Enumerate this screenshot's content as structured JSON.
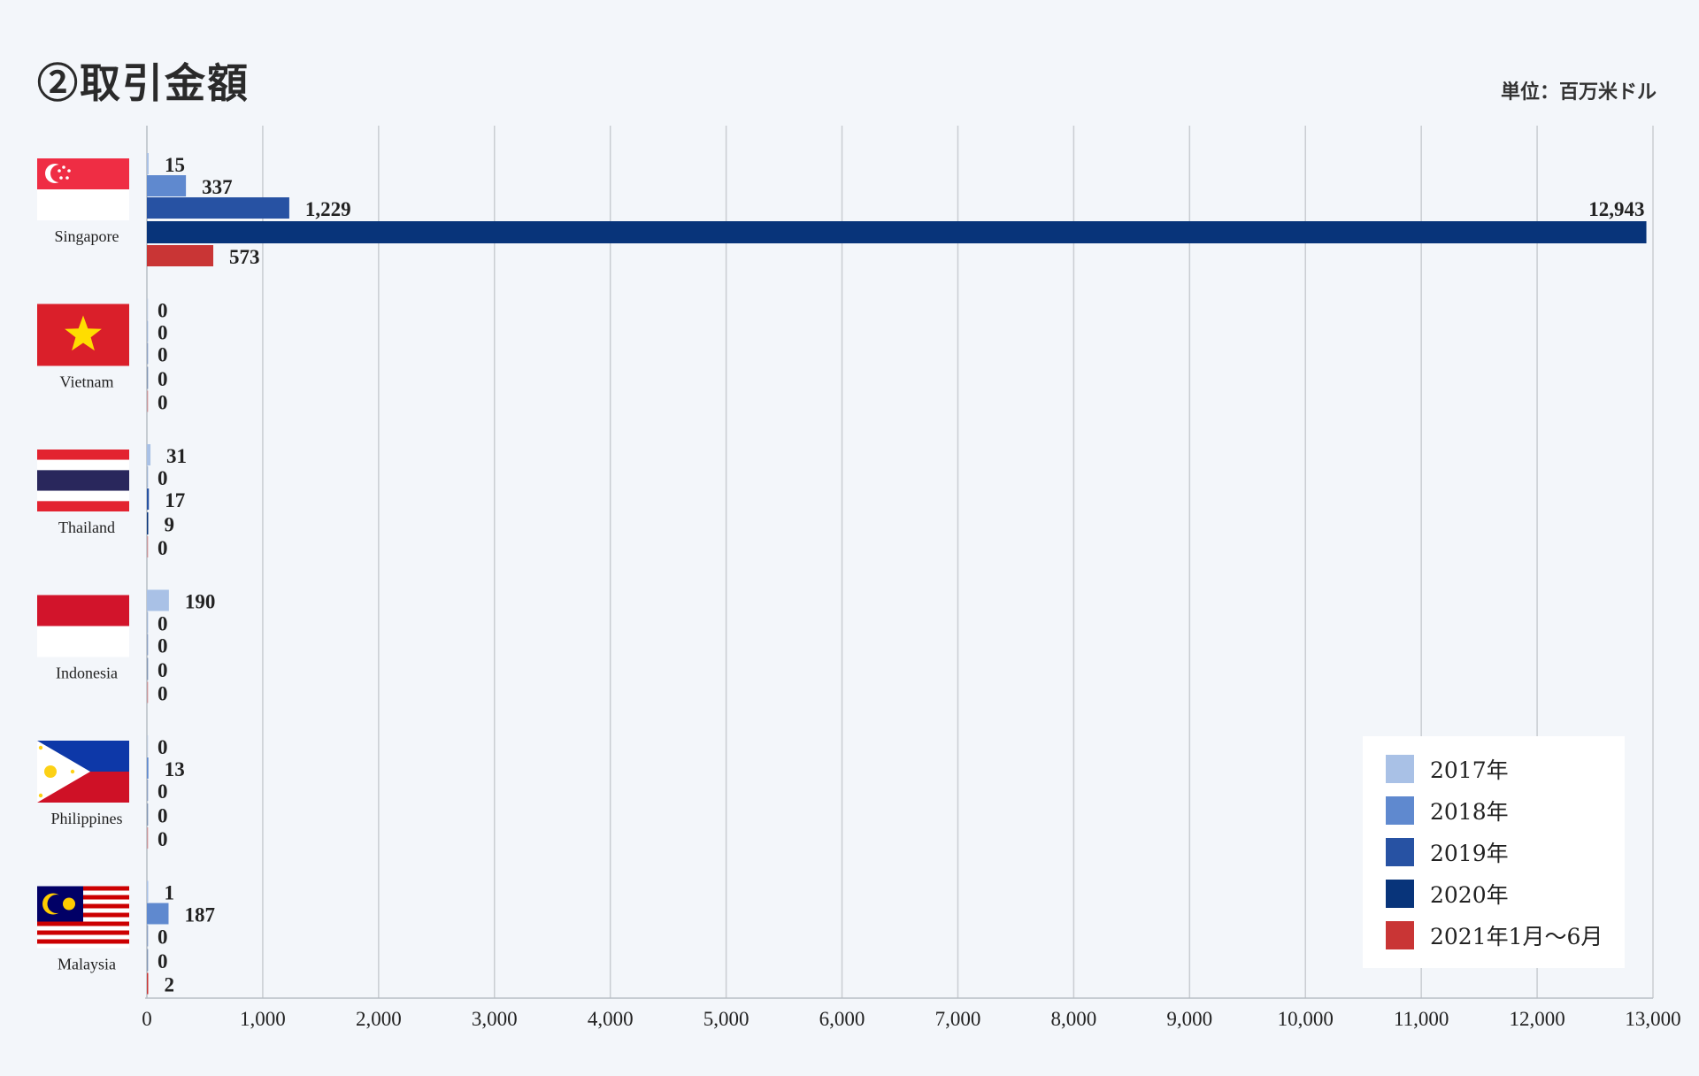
{
  "header": {
    "title": "②取引金額",
    "unit": "単位：百万米ドル"
  },
  "colors": {
    "s2017": "#a9c1e6",
    "s2018": "#5f89cf",
    "s2019": "#2752a3",
    "s2020": "#08347a",
    "s2021": "#c93535",
    "grid": "#c9cdd2",
    "background": "#f3f6fa"
  },
  "chart_data": {
    "type": "bar",
    "orientation": "horizontal",
    "categories": [
      "Singapore",
      "Vietnam",
      "Thailand",
      "Indonesia",
      "Philippines",
      "Malaysia"
    ],
    "series": [
      {
        "name": "2017年",
        "values": [
          15,
          0,
          31,
          190,
          0,
          1
        ]
      },
      {
        "name": "2018年",
        "values": [
          337,
          0,
          0,
          0,
          13,
          187
        ]
      },
      {
        "name": "2019年",
        "values": [
          1229,
          0,
          17,
          0,
          0,
          0
        ]
      },
      {
        "name": "2020年",
        "values": [
          12943,
          0,
          9,
          0,
          0,
          0
        ]
      },
      {
        "name": "2021年1月～6月",
        "values": [
          573,
          0,
          0,
          0,
          0,
          2
        ]
      }
    ],
    "data_labels": [
      [
        "15",
        "337",
        "1,229",
        "12,943",
        "573"
      ],
      [
        "0",
        "0",
        "0",
        "0",
        "0"
      ],
      [
        "31",
        "0",
        "17",
        "9",
        "0"
      ],
      [
        "190",
        "0",
        "0",
        "0",
        "0"
      ],
      [
        "0",
        "13",
        "0",
        "0",
        "0"
      ],
      [
        "1",
        "187",
        "0",
        "0",
        "2"
      ]
    ],
    "xlim": [
      0,
      13000
    ],
    "x_ticks": [
      0,
      1000,
      2000,
      3000,
      4000,
      5000,
      6000,
      7000,
      8000,
      9000,
      10000,
      11000,
      12000,
      13000
    ],
    "x_tick_labels": [
      "0",
      "1,000",
      "2,000",
      "3,000",
      "4,000",
      "5,000",
      "6,000",
      "7,000",
      "8,000",
      "9,000",
      "10,000",
      "11,000",
      "12,000",
      "13,000"
    ],
    "grid": true,
    "legend_position": "bottom-right",
    "flags": [
      "singapore-flag-icon",
      "vietnam-flag-icon",
      "thailand-flag-icon",
      "indonesia-flag-icon",
      "philippines-flag-icon",
      "malaysia-flag-icon"
    ]
  }
}
